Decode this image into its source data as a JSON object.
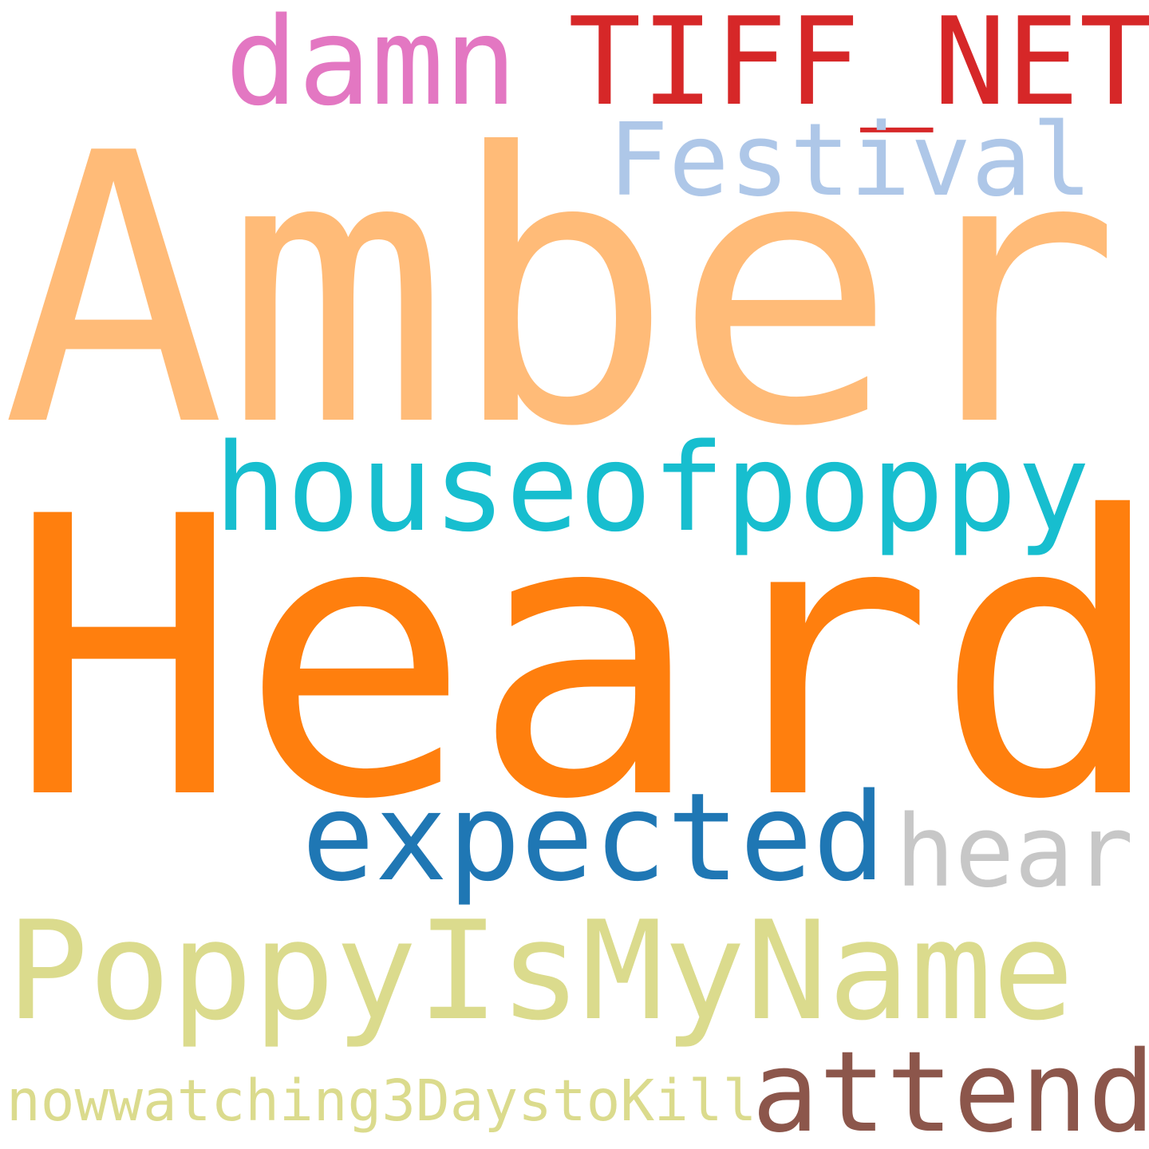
{
  "background_color": "#ffffff",
  "words": [
    {
      "key": "amber",
      "text": "Amber",
      "color": "#ffbb78"
    },
    {
      "key": "heard",
      "text": "Heard",
      "color": "#ff7f0e"
    },
    {
      "key": "tiff_net",
      "text": "TIFF_NET",
      "color": "#d62728"
    },
    {
      "key": "damn",
      "text": "damn",
      "color": "#e377c2"
    },
    {
      "key": "festival",
      "text": "Festival",
      "color": "#aec7e8"
    },
    {
      "key": "houseofpoppy",
      "text": "houseofpoppy",
      "color": "#17becf"
    },
    {
      "key": "expected",
      "text": "expected",
      "color": "#1f77b4"
    },
    {
      "key": "hear",
      "text": "hear",
      "color": "#c7c7c7"
    },
    {
      "key": "poppyismyname",
      "text": "PoppyIsMyName",
      "color": "#dbdb8d"
    },
    {
      "key": "attend",
      "text": "attend",
      "color": "#8c564b"
    },
    {
      "key": "nowwatching",
      "text": "nowwatching3DaystoKill",
      "color": "#dbdb8d"
    }
  ]
}
